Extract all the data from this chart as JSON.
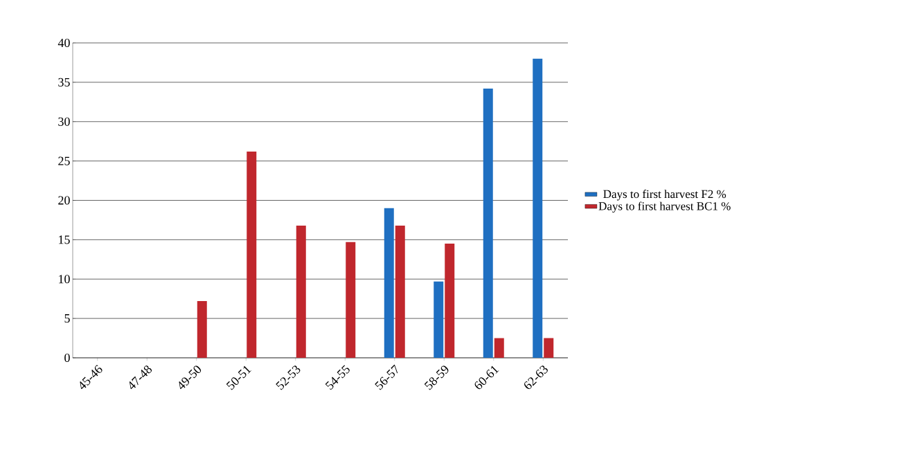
{
  "chart_data": {
    "type": "bar",
    "categories": [
      "45-46",
      "47-48",
      "49-50",
      "50-51",
      "52-53",
      "54-55",
      "56-57",
      "58-59",
      "60-61",
      "62-63"
    ],
    "series": [
      {
        "name": "Days to first  harvest  F2 %",
        "color": "#1f6fc1",
        "values": [
          null,
          null,
          null,
          null,
          null,
          null,
          19,
          9.7,
          34.2,
          38
        ]
      },
      {
        "name": "Days to first  harvest  BC1 %",
        "color": "#c0272d",
        "values": [
          null,
          null,
          7.2,
          26.2,
          16.8,
          14.7,
          16.8,
          14.5,
          2.5,
          2.5
        ]
      }
    ],
    "ylim": [
      0,
      40
    ],
    "yticks": [
      0,
      5,
      10,
      15,
      20,
      25,
      30,
      35,
      40
    ],
    "grid": "y",
    "legend": "right"
  }
}
